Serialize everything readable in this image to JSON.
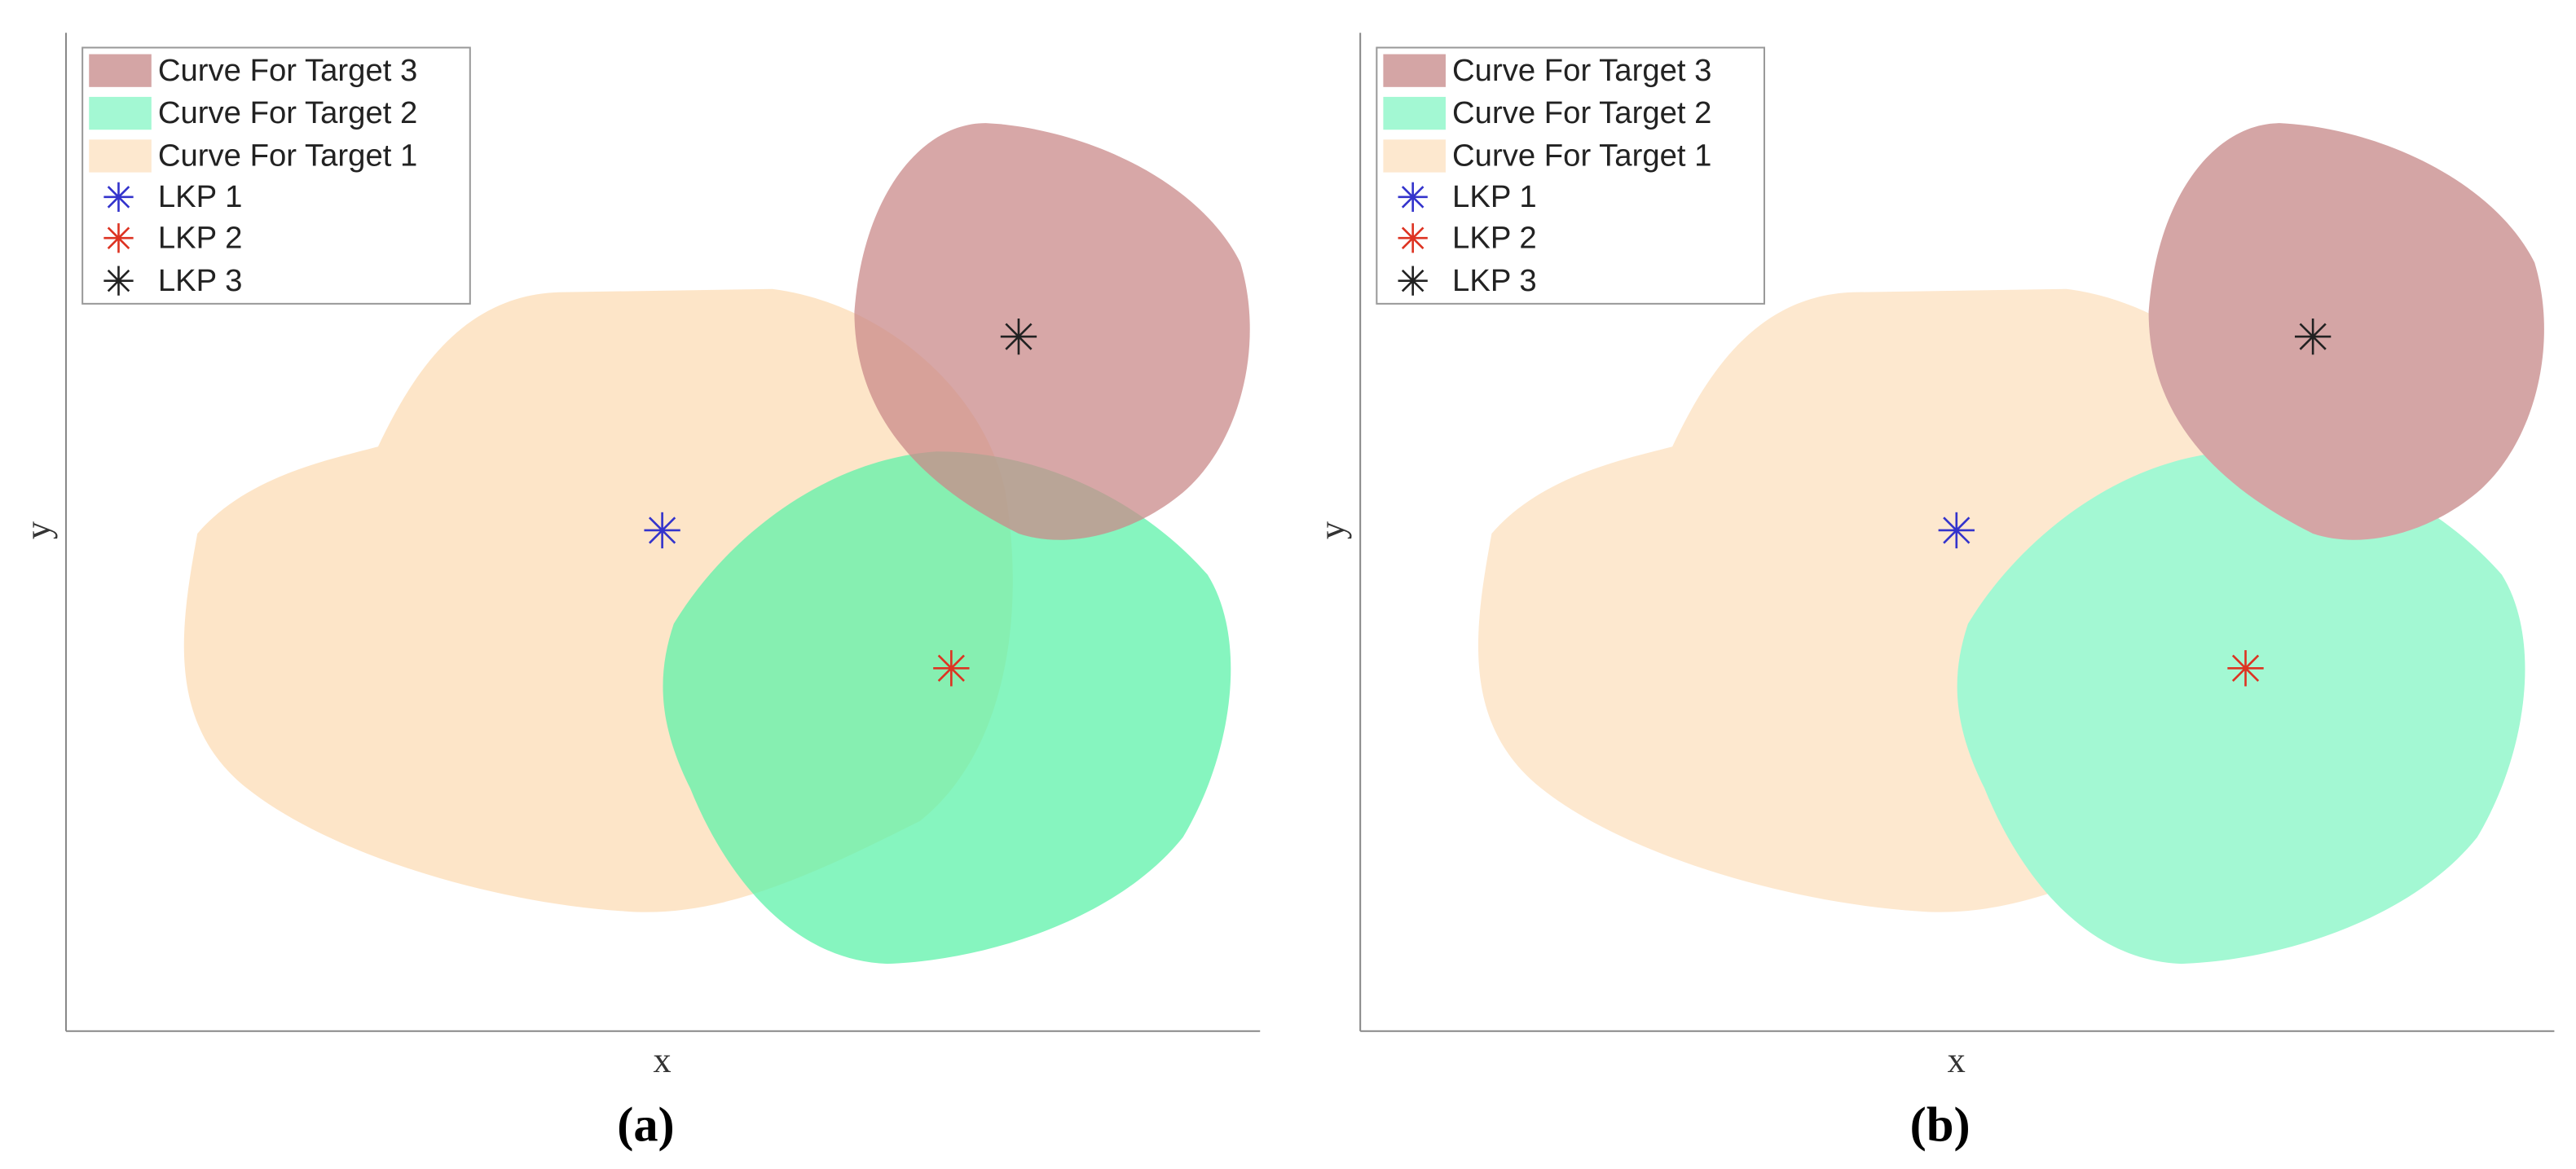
{
  "panels": [
    {
      "label": "(a)",
      "x_label": "x",
      "y_label": "y",
      "legend": [
        "Curve For Target 3",
        "Curve For Target 2",
        "Curve For Target 1",
        "LKP 1",
        "LKP 2",
        "LKP 3"
      ]
    },
    {
      "label": "(b)",
      "x_label": "x",
      "y_label": "y",
      "legend": [
        "Curve For Target 3",
        "Curve For Target 2",
        "Curve For Target 1",
        "LKP 1",
        "LKP 2",
        "LKP 3"
      ]
    }
  ]
}
